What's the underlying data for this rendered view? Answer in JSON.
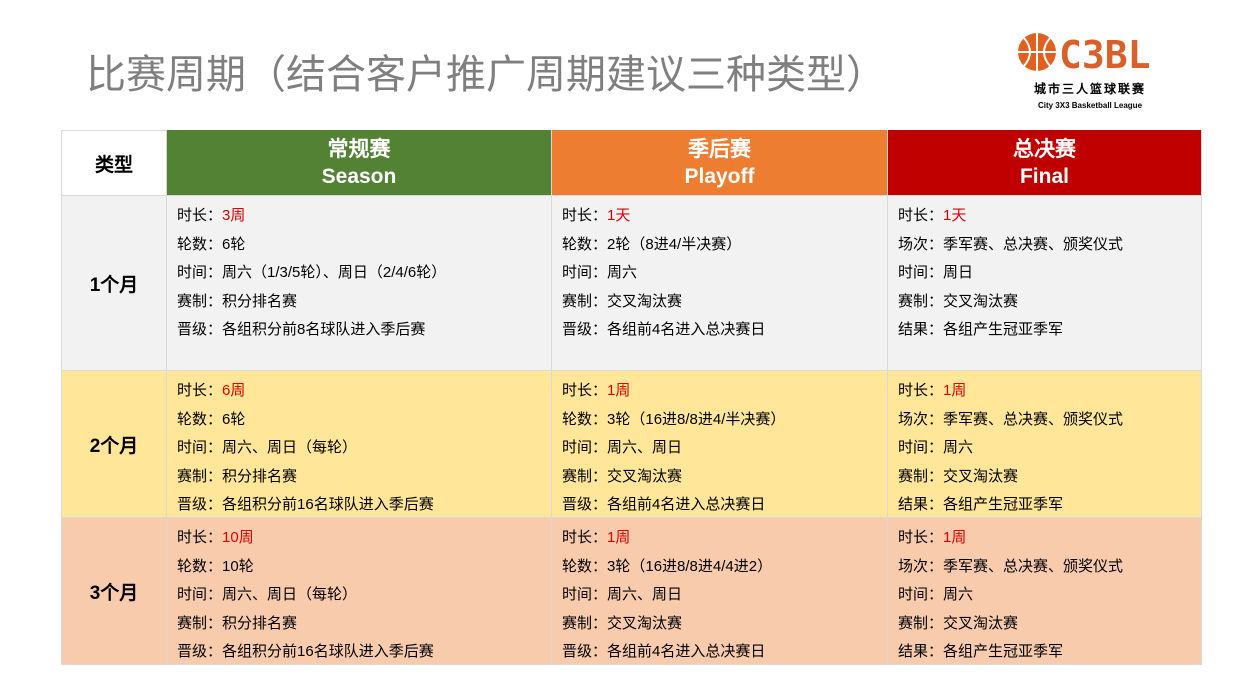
{
  "header": {
    "title": "比赛周期（结合客户推广周期建议三种类型）",
    "logo": {
      "mark": "C3BL",
      "name": "城市三人篮球联赛",
      "subname": "City 3X3 Basketball League"
    }
  },
  "table": {
    "corner": "类型",
    "columns": [
      {
        "zh": "常规赛",
        "en": "Season",
        "color": "#548235"
      },
      {
        "zh": "季后赛",
        "en": "Playoff",
        "color": "#ed7d31"
      },
      {
        "zh": "总决赛",
        "en": "Final",
        "color": "#c00000"
      }
    ],
    "rows": [
      {
        "label": "1个月",
        "color": "#f2f2f2",
        "cells": [
          [
            [
              "时长：",
              "3周"
            ],
            [
              "轮数：",
              "6轮"
            ],
            [
              "时间：",
              "周六（1/3/5轮）、周日（2/4/6轮）"
            ],
            [
              "赛制：",
              "积分排名赛"
            ],
            [
              "晋级：",
              "各组积分前8名球队进入季后赛"
            ]
          ],
          [
            [
              "时长：",
              "1天"
            ],
            [
              "轮数：",
              "2轮（8进4/半决赛）"
            ],
            [
              "时间：",
              "周六"
            ],
            [
              "赛制：",
              "交叉淘汰赛"
            ],
            [
              "晋级：",
              "各组前4名进入总决赛日"
            ]
          ],
          [
            [
              "时长：",
              "1天"
            ],
            [
              "场次：",
              "季军赛、总决赛、颁奖仪式"
            ],
            [
              "时间：",
              "周日"
            ],
            [
              "赛制：",
              "交叉淘汰赛"
            ],
            [
              "结果：",
              "各组产生冠亚季军"
            ]
          ]
        ]
      },
      {
        "label": "2个月",
        "color": "#ffe699",
        "cells": [
          [
            [
              "时长：",
              "6周"
            ],
            [
              "轮数：",
              "6轮"
            ],
            [
              "时间：",
              "周六、周日（每轮）"
            ],
            [
              "赛制：",
              "积分排名赛"
            ],
            [
              "晋级：",
              "各组积分前16名球队进入季后赛"
            ]
          ],
          [
            [
              "时长：",
              "1周"
            ],
            [
              "轮数：",
              "3轮（16进8/8进4/半决赛）"
            ],
            [
              "时间：",
              "周六、周日"
            ],
            [
              "赛制：",
              "交叉淘汰赛"
            ],
            [
              "晋级：",
              "各组前4名进入总决赛日"
            ]
          ],
          [
            [
              "时长：",
              "1周"
            ],
            [
              "场次：",
              "季军赛、总决赛、颁奖仪式"
            ],
            [
              "时间：",
              "周六"
            ],
            [
              "赛制：",
              "交叉淘汰赛"
            ],
            [
              "结果：",
              "各组产生冠亚季军"
            ]
          ]
        ]
      },
      {
        "label": "3个月",
        "color": "#f8cbad",
        "cells": [
          [
            [
              "时长：",
              "10周"
            ],
            [
              "轮数：",
              "10轮"
            ],
            [
              "时间：",
              "周六、周日（每轮）"
            ],
            [
              "赛制：",
              "积分排名赛"
            ],
            [
              "晋级：",
              "各组积分前16名球队进入季后赛"
            ]
          ],
          [
            [
              "时长：",
              "1周"
            ],
            [
              "轮数：",
              "3轮（16进8/8进4/4进2）"
            ],
            [
              "时间：",
              "周六、周日"
            ],
            [
              "赛制：",
              "交叉淘汰赛"
            ],
            [
              "晋级：",
              "各组前4名进入总决赛日"
            ]
          ],
          [
            [
              "时长：",
              "1周"
            ],
            [
              "场次：",
              "季军赛、总决赛、颁奖仪式"
            ],
            [
              "时间：",
              "周六"
            ],
            [
              "赛制：",
              "交叉淘汰赛"
            ],
            [
              "结果：",
              "各组产生冠亚季军"
            ]
          ]
        ]
      }
    ]
  }
}
